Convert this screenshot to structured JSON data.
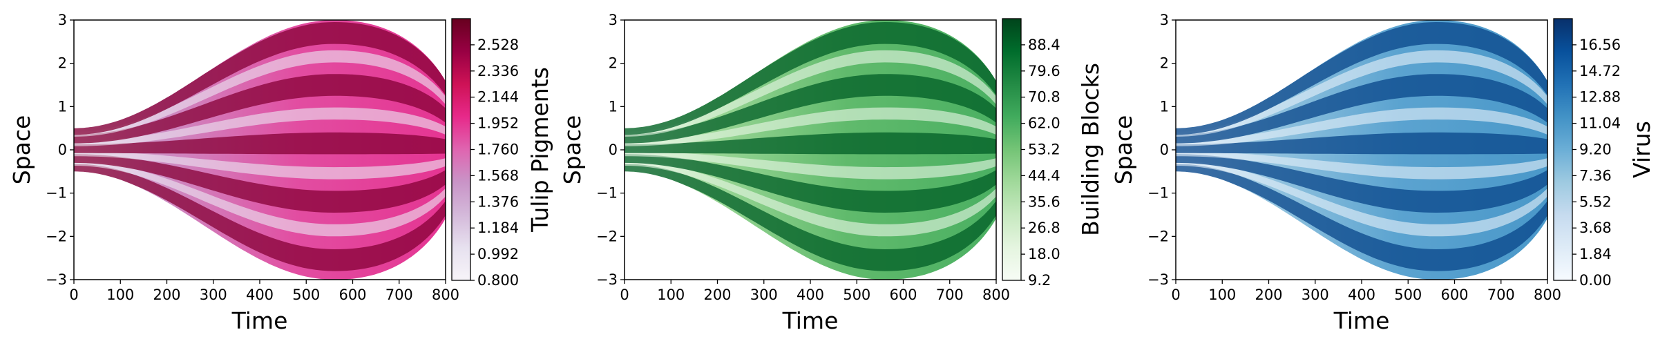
{
  "chart_data": [
    {
      "type": "heatmap",
      "xlabel": "Time",
      "ylabel": "Space",
      "xlim": [
        0,
        800
      ],
      "ylim": [
        -3,
        3
      ],
      "xticks": [
        "0",
        "100",
        "200",
        "300",
        "400",
        "500",
        "600",
        "700",
        "800"
      ],
      "yticks": [
        "3",
        "2",
        "1",
        "0",
        "−1",
        "−2",
        "−3"
      ],
      "colorbar": {
        "label": "Tulip Pigments",
        "ticks": [
          "2.528",
          "2.336",
          "2.144",
          "1.952",
          "1.760",
          "1.568",
          "1.376",
          "1.184",
          "0.992",
          "0.800"
        ],
        "range": [
          0.8,
          2.72
        ],
        "colormap": [
          "#f7f4f9",
          "#e7e1ef",
          "#d4b9da",
          "#c994c7",
          "#df65b0",
          "#e7298a",
          "#ce1256",
          "#980043",
          "#67001f"
        ]
      },
      "domain": {
        "x0": 0,
        "x1": 800,
        "width_at_0": 0.5,
        "max_width": 3.0,
        "peak_time": 560
      }
    },
    {
      "type": "heatmap",
      "xlabel": "Time",
      "ylabel": "Space",
      "xlim": [
        0,
        800
      ],
      "ylim": [
        -3,
        3
      ],
      "xticks": [
        "0",
        "100",
        "200",
        "300",
        "400",
        "500",
        "600",
        "700",
        "800"
      ],
      "yticks": [
        "3",
        "2",
        "1",
        "0",
        "−1",
        "−2",
        "−3"
      ],
      "colorbar": {
        "label": "Building Blocks",
        "ticks": [
          "88.4",
          "79.6",
          "70.8",
          "62.0",
          "53.2",
          "44.4",
          "35.6",
          "26.8",
          "18.0",
          "9.2"
        ],
        "range": [
          9.2,
          97.2
        ],
        "colormap": [
          "#f7fcf5",
          "#e5f5e0",
          "#c7e9c0",
          "#a1d99b",
          "#74c476",
          "#41ab5d",
          "#238b45",
          "#006d2c",
          "#00441b"
        ]
      },
      "domain": {
        "x0": 0,
        "x1": 800,
        "width_at_0": 0.5,
        "max_width": 3.0,
        "peak_time": 560
      }
    },
    {
      "type": "heatmap",
      "xlabel": "Time",
      "ylabel": "Space",
      "xlim": [
        0,
        800
      ],
      "ylim": [
        -3,
        3
      ],
      "xticks": [
        "0",
        "100",
        "200",
        "300",
        "400",
        "500",
        "600",
        "700",
        "800"
      ],
      "yticks": [
        "3",
        "2",
        "1",
        "0",
        "−1",
        "−2",
        "−3"
      ],
      "colorbar": {
        "label": "Virus",
        "ticks": [
          "16.56",
          "14.72",
          "12.88",
          "11.04",
          "9.20",
          "7.36",
          "5.52",
          "3.68",
          "1.84",
          "0.00"
        ],
        "range": [
          0.0,
          18.4
        ],
        "colormap": [
          "#f7fbff",
          "#deebf7",
          "#c6dbef",
          "#9ecae1",
          "#6baed6",
          "#4292c6",
          "#2171b5",
          "#08519c",
          "#08306b"
        ]
      },
      "domain": {
        "x0": 0,
        "x1": 800,
        "width_at_0": 0.5,
        "max_width": 3.0,
        "peak_time": 560
      }
    }
  ]
}
